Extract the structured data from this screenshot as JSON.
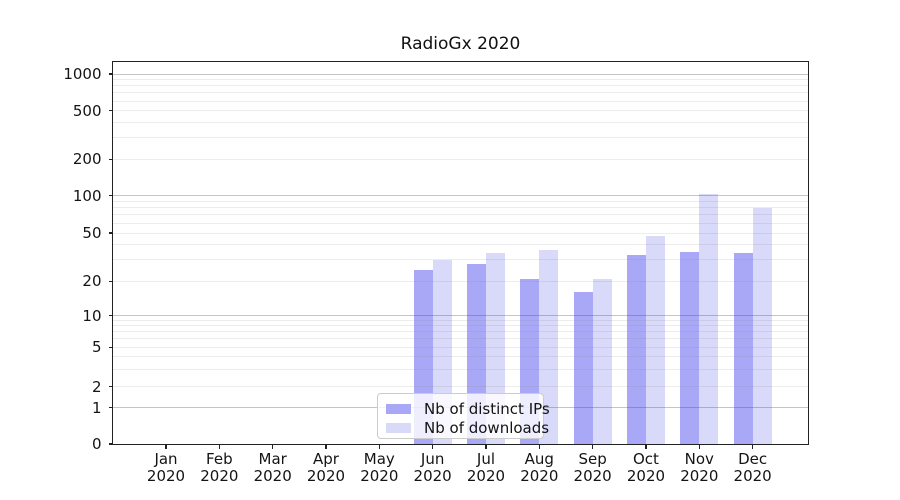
{
  "page_title": "RadioGx 2020",
  "chart_data": {
    "type": "bar",
    "title": "RadioGx 2020",
    "categories": [
      "Jan",
      "Feb",
      "Mar",
      "Apr",
      "May",
      "Jun",
      "Jul",
      "Aug",
      "Sep",
      "Oct",
      "Nov",
      "Dec"
    ],
    "category_year": "2020",
    "series": [
      {
        "name": "Nb of distinct IPs",
        "color": "#a8a8f7",
        "values": [
          0,
          0,
          0,
          0,
          0,
          25,
          28,
          21,
          16,
          33,
          35,
          34
        ]
      },
      {
        "name": "Nb of downloads",
        "color": "#d9d9fa",
        "values": [
          0,
          0,
          0,
          0,
          0,
          30,
          34,
          36,
          21,
          47,
          103,
          79
        ]
      }
    ],
    "yticks": [
      0,
      1,
      2,
      5,
      10,
      20,
      50,
      100,
      200,
      500,
      1000
    ],
    "yscale": "log-like with zero baseline (symlog)",
    "ylim": [
      0,
      1250
    ],
    "grid": "horizontal major and minor gridlines",
    "legend_position": "lower center"
  },
  "colors": {
    "series_ips": "#a8a8f7",
    "series_downloads": "#d9d9fa",
    "axis": "#222222",
    "grid_major": "#c6c6c9",
    "grid_minor": "#ececec",
    "legend_border": "#cccccc",
    "background": "#ffffff"
  }
}
